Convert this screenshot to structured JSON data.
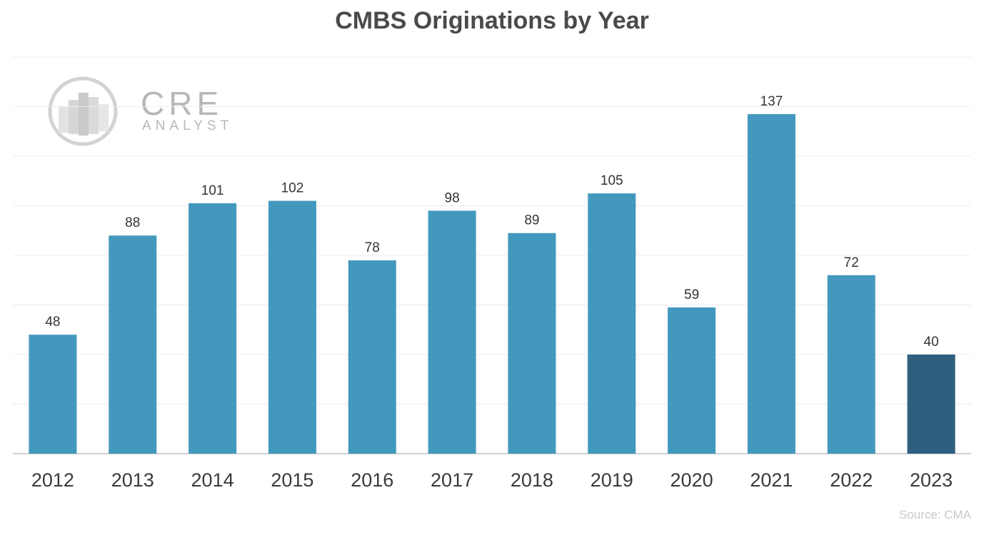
{
  "chart_data": {
    "type": "bar",
    "title": "CMBS Originations by Year",
    "xlabel": "",
    "ylabel": "",
    "categories": [
      "2012",
      "2013",
      "2014",
      "2015",
      "2016",
      "2017",
      "2018",
      "2019",
      "2020",
      "2021",
      "2022",
      "2023"
    ],
    "values": [
      48,
      88,
      101,
      102,
      78,
      98,
      89,
      105,
      59,
      137,
      72,
      40
    ],
    "ylim": [
      0,
      160
    ],
    "grid": true,
    "legend": "none",
    "colors": {
      "bar": "#4398bd",
      "highlight": "#2e5f7f",
      "grid": "#ececec",
      "axis": "#d0d0d0"
    },
    "highlight_index": 11,
    "source": "Source: CMA"
  },
  "logo": {
    "wordmark": "CRE",
    "sub": "ANALYST",
    "icon": "building-logo-icon"
  }
}
